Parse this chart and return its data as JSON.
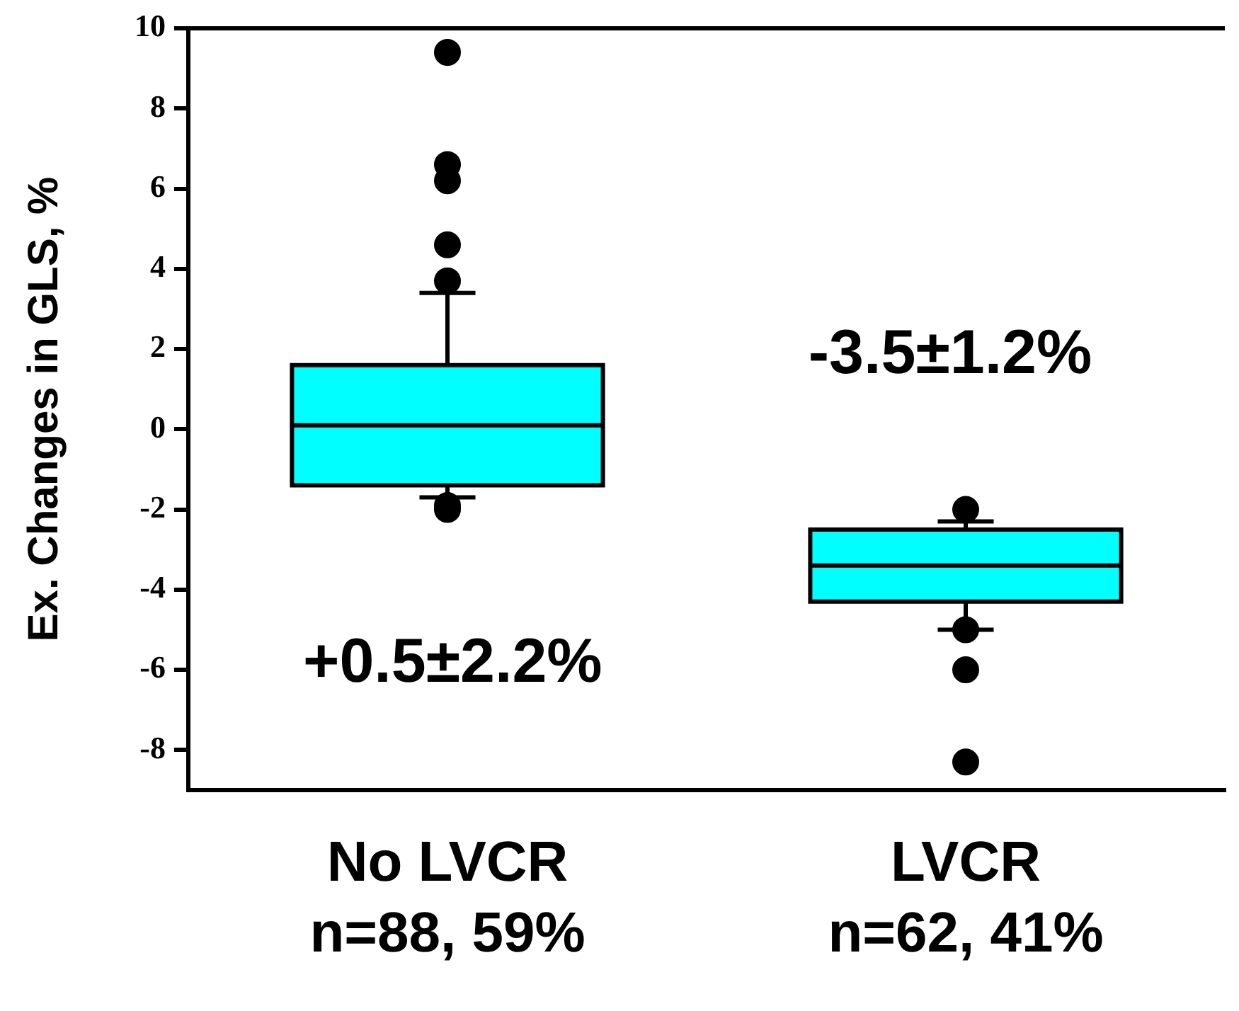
{
  "chart_data": {
    "type": "box",
    "ylabel": "Ex. Changes in GLS, %",
    "categories": [
      "No LVCR\nn=88, 59%",
      "LVCR\nn=62, 41%"
    ],
    "color": "#00ffff",
    "boxes": [
      {
        "low": -1.7,
        "q1": -1.4,
        "median": 0.1,
        "q3": 1.6,
        "high": 3.4,
        "outliers": [
          9.4,
          6.6,
          6.2,
          4.6,
          3.7,
          -1.9,
          -2.0
        ]
      },
      {
        "low": -5.0,
        "q1": -4.3,
        "median": -3.4,
        "q3": -2.5,
        "high": -2.3,
        "outliers": [
          -2.0,
          -5.0,
          -6.0,
          -8.3
        ]
      }
    ],
    "ylim": [
      -9,
      10
    ],
    "yticks": [
      -8,
      -6,
      -4,
      -2,
      0,
      2,
      4,
      6,
      8,
      10
    ],
    "annotations": [
      "+0.5±2.2%",
      "-3.5±1.2%"
    ],
    "grid": false,
    "legend": false,
    "marker": "circle"
  }
}
